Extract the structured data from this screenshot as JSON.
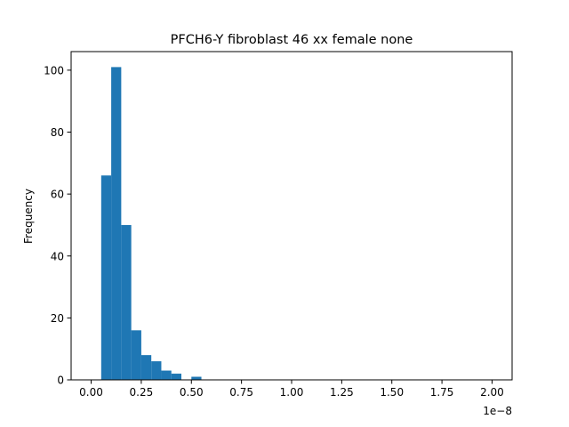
{
  "chart_data": {
    "type": "bar",
    "title": "PFCH6-Y fibroblast 46 xx female none",
    "xlabel": "",
    "ylabel": "Frequency",
    "x_offset_label": "1e−8",
    "x_scale": 1e-08,
    "xlim": [
      -0.1,
      2.1
    ],
    "ylim": [
      0,
      106
    ],
    "grid": false,
    "bar_color": "#1f77b4",
    "bins": [
      {
        "x0": 0.05,
        "x1": 0.1,
        "count": 66
      },
      {
        "x0": 0.1,
        "x1": 0.15,
        "count": 101
      },
      {
        "x0": 0.15,
        "x1": 0.2,
        "count": 50
      },
      {
        "x0": 0.2,
        "x1": 0.25,
        "count": 16
      },
      {
        "x0": 0.25,
        "x1": 0.3,
        "count": 8
      },
      {
        "x0": 0.3,
        "x1": 0.35,
        "count": 6
      },
      {
        "x0": 0.35,
        "x1": 0.4,
        "count": 3
      },
      {
        "x0": 0.4,
        "x1": 0.45,
        "count": 2
      },
      {
        "x0": 0.45,
        "x1": 0.5,
        "count": 0
      },
      {
        "x0": 0.5,
        "x1": 0.55,
        "count": 1
      }
    ],
    "x_ticks": [
      {
        "value": 0.0,
        "label": "0.00"
      },
      {
        "value": 0.25,
        "label": "0.25"
      },
      {
        "value": 0.5,
        "label": "0.50"
      },
      {
        "value": 0.75,
        "label": "0.75"
      },
      {
        "value": 1.0,
        "label": "1.00"
      },
      {
        "value": 1.25,
        "label": "1.25"
      },
      {
        "value": 1.5,
        "label": "1.50"
      },
      {
        "value": 1.75,
        "label": "1.75"
      },
      {
        "value": 2.0,
        "label": "2.00"
      }
    ],
    "y_ticks": [
      {
        "value": 0,
        "label": "0"
      },
      {
        "value": 20,
        "label": "20"
      },
      {
        "value": 40,
        "label": "40"
      },
      {
        "value": 60,
        "label": "60"
      },
      {
        "value": 80,
        "label": "80"
      },
      {
        "value": 100,
        "label": "100"
      }
    ]
  }
}
